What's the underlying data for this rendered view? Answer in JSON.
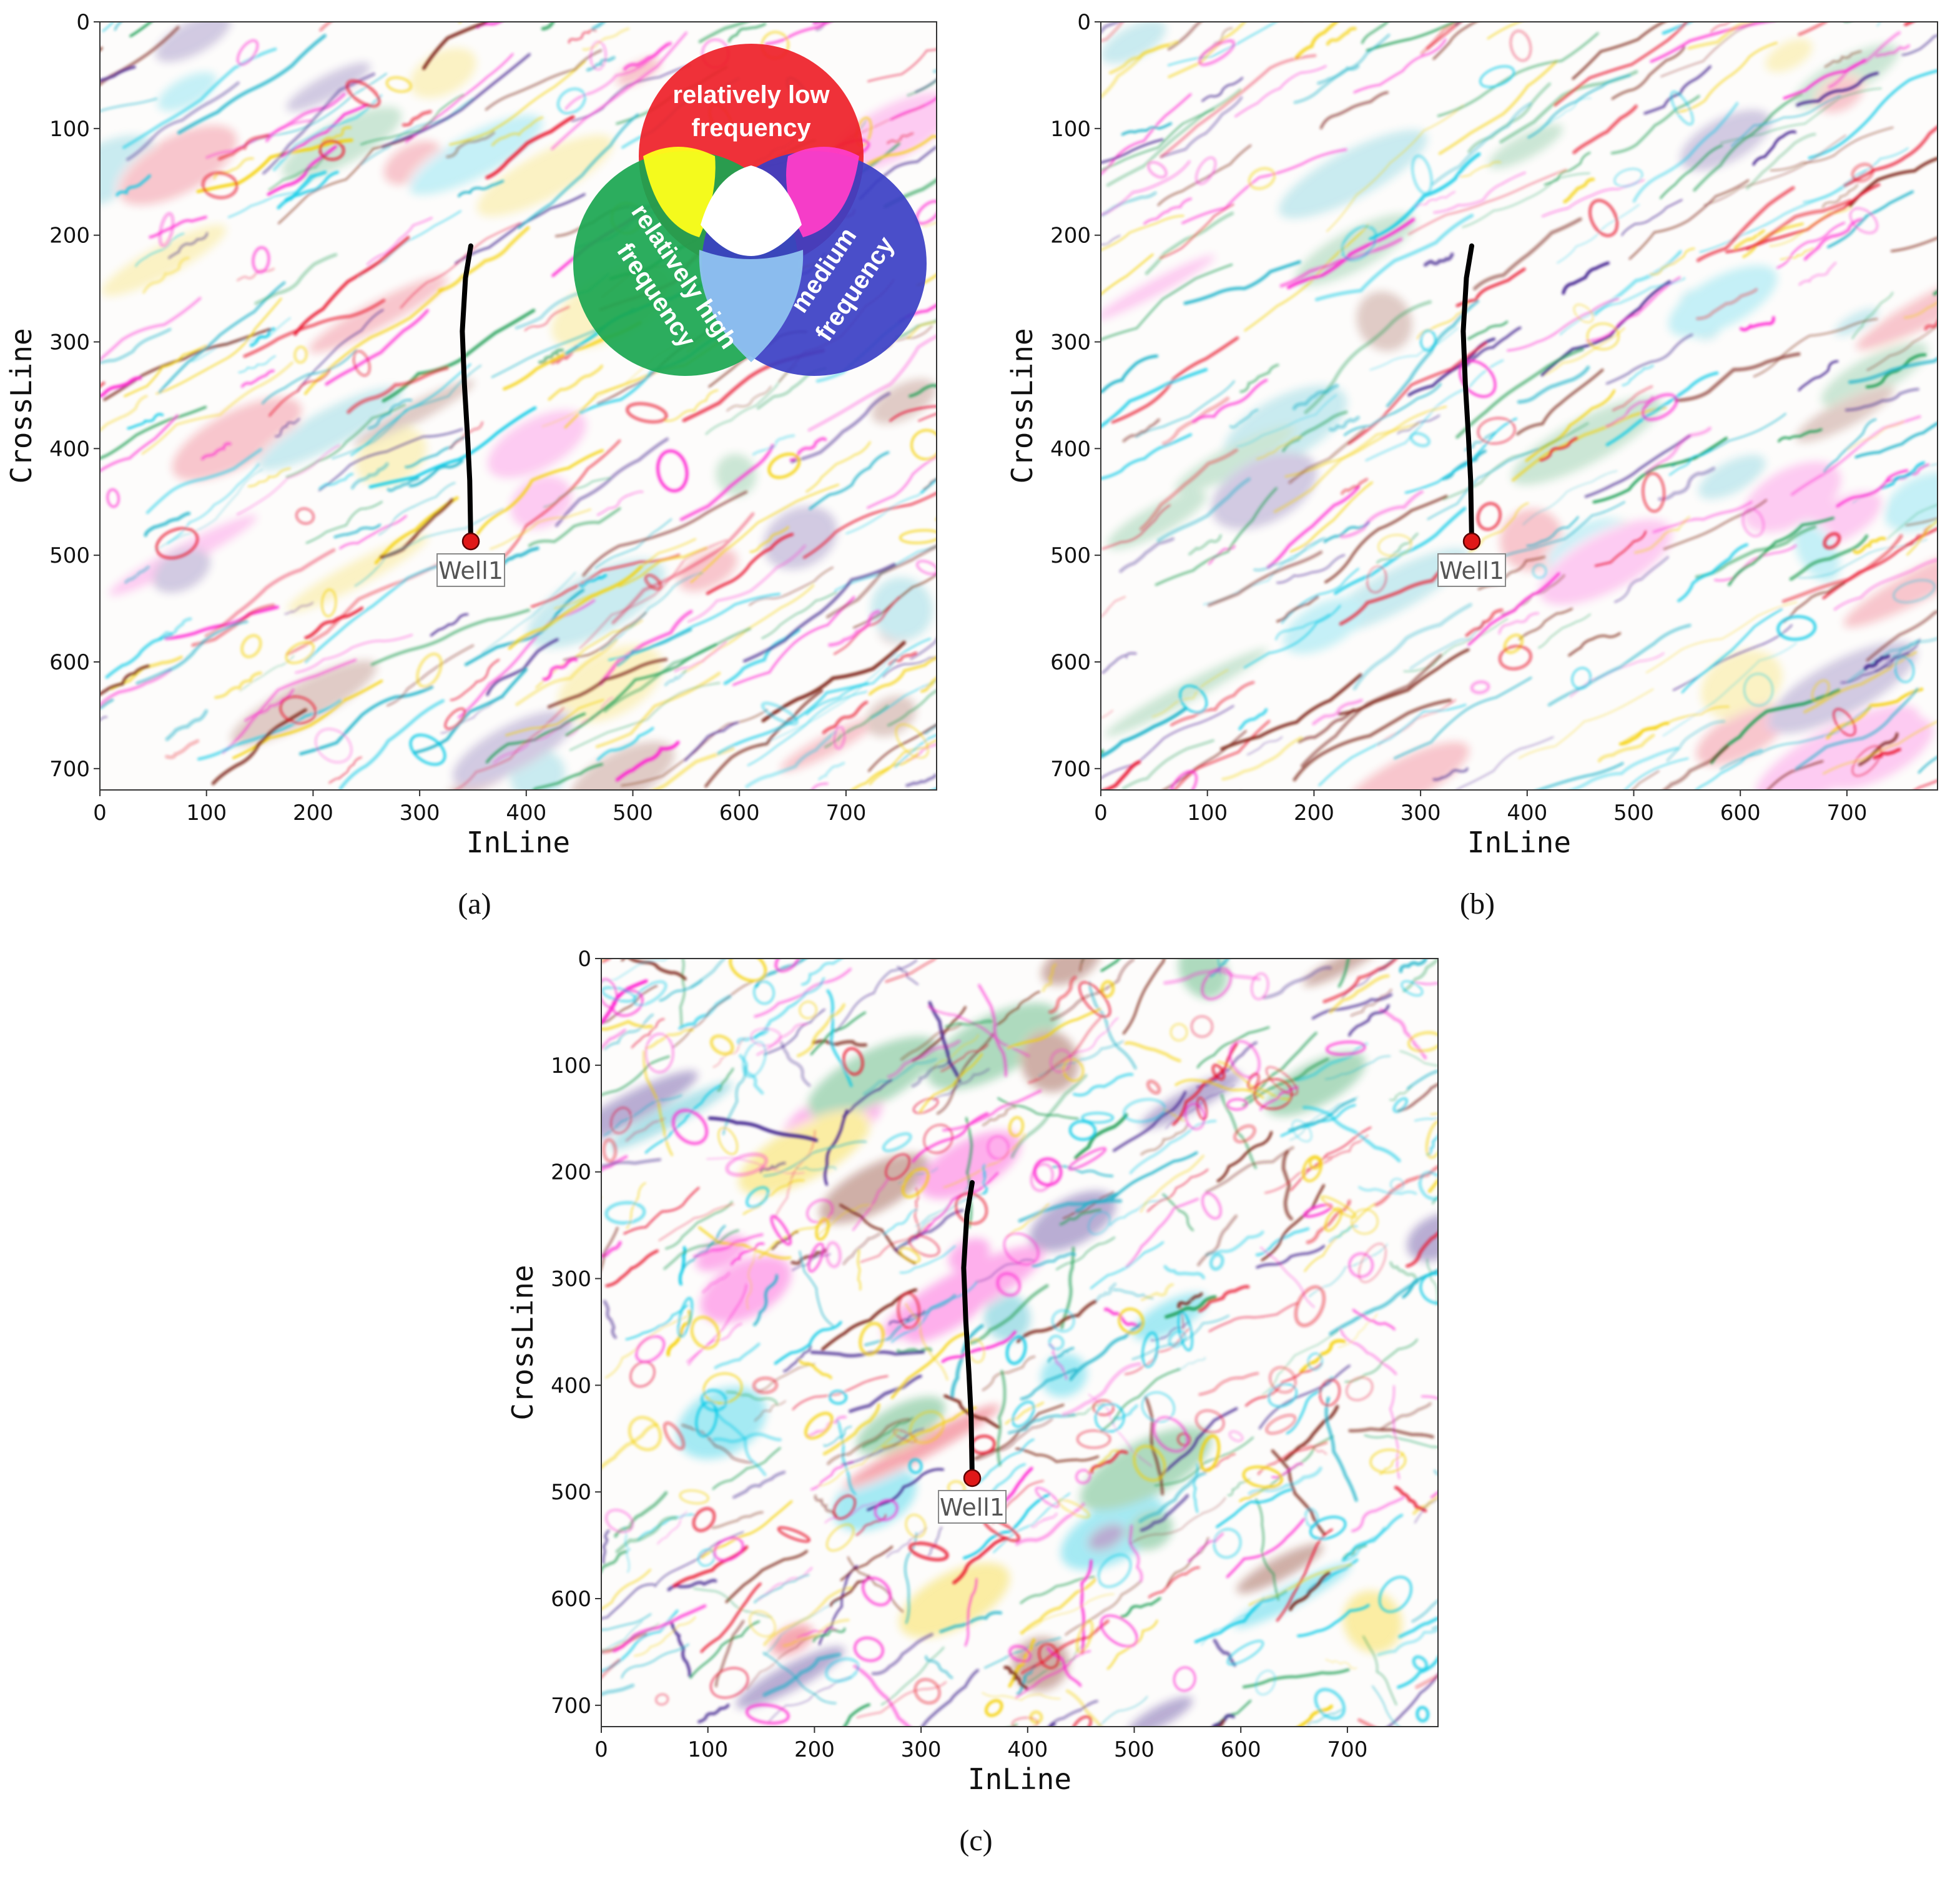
{
  "figure": {
    "colors": {
      "low_frequency": "#ee2028",
      "medium_frequency": "#3b3fc4",
      "high_frequency": "#1aa650",
      "well_marker": "#e01818",
      "well_path": "#000000"
    },
    "legend": {
      "low": "relatively low frequency",
      "medium": "medium frequency",
      "high": "relatively high frequency"
    }
  },
  "chart_data": [
    {
      "type": "heatmap",
      "panel": "a",
      "caption": "(a)",
      "xlabel": "InLine",
      "ylabel": "CrossLine",
      "xlim": [
        0,
        785
      ],
      "ylim": [
        0,
        720
      ],
      "y_inverted": true,
      "xticks": [
        0,
        100,
        200,
        300,
        400,
        500,
        600,
        700
      ],
      "yticks": [
        0,
        100,
        200,
        300,
        400,
        500,
        600,
        700
      ],
      "well": {
        "label": "Well1",
        "marker": [
          348,
          487
        ],
        "path": [
          [
            348,
            210
          ],
          [
            343,
            240
          ],
          [
            340,
            290
          ],
          [
            342,
            340
          ],
          [
            345,
            390
          ],
          [
            347,
            430
          ],
          [
            348,
            487
          ]
        ]
      },
      "has_legend": true
    },
    {
      "type": "heatmap",
      "panel": "b",
      "caption": "(b)",
      "xlabel": "InLine",
      "ylabel": "CrossLine",
      "xlim": [
        0,
        785
      ],
      "ylim": [
        0,
        720
      ],
      "y_inverted": true,
      "xticks": [
        0,
        100,
        200,
        300,
        400,
        500,
        600,
        700
      ],
      "yticks": [
        0,
        100,
        200,
        300,
        400,
        500,
        600,
        700
      ],
      "well": {
        "label": "Well1",
        "marker": [
          348,
          487
        ],
        "path": [
          [
            348,
            210
          ],
          [
            343,
            240
          ],
          [
            340,
            290
          ],
          [
            342,
            340
          ],
          [
            345,
            390
          ],
          [
            347,
            430
          ],
          [
            348,
            487
          ]
        ]
      },
      "has_legend": false
    },
    {
      "type": "heatmap",
      "panel": "c",
      "caption": "(c)",
      "xlabel": "InLine",
      "ylabel": "CrossLine",
      "xlim": [
        0,
        785
      ],
      "ylim": [
        0,
        720
      ],
      "y_inverted": true,
      "xticks": [
        0,
        100,
        200,
        300,
        400,
        500,
        600,
        700
      ],
      "yticks": [
        0,
        100,
        200,
        300,
        400,
        500,
        600,
        700
      ],
      "well": {
        "label": "Well1",
        "marker": [
          348,
          487
        ],
        "path": [
          [
            348,
            210
          ],
          [
            343,
            240
          ],
          [
            340,
            290
          ],
          [
            342,
            340
          ],
          [
            345,
            390
          ],
          [
            347,
            430
          ],
          [
            348,
            487
          ]
        ]
      },
      "has_legend": false
    }
  ]
}
